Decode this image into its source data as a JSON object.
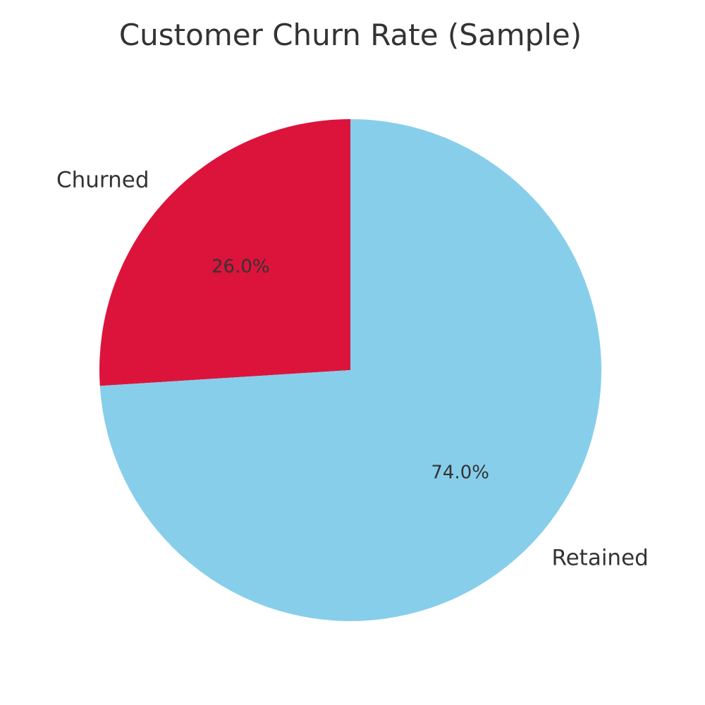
{
  "chart_data": {
    "type": "pie",
    "title": "Customer Churn Rate (Sample)",
    "start_angle_deg": 90,
    "direction": "counterclockwise",
    "slices": [
      {
        "key": "churned",
        "label": "Churned",
        "value": 26.0,
        "pct_label": "26.0%",
        "color": "#DC143C"
      },
      {
        "key": "retained",
        "label": "Retained",
        "value": 74.0,
        "pct_label": "74.0%",
        "color": "#87CEEB"
      }
    ]
  }
}
